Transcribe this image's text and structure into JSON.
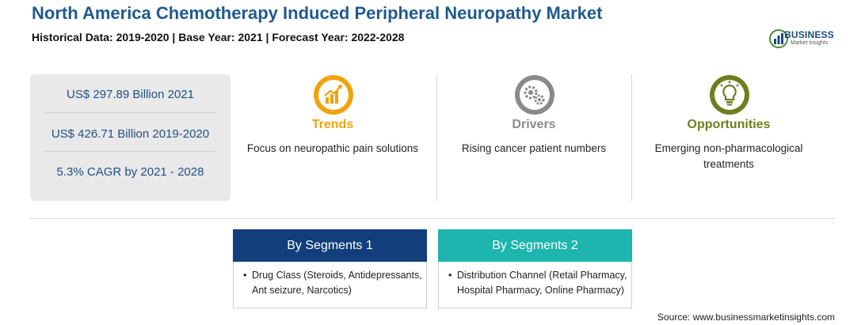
{
  "header": {
    "title": "North America Chemotherapy Induced Peripheral Neuropathy Market",
    "subtitle": "Historical Data: 2019-2020 | Base Year: 2021 | Forecast Year: 2022-2028"
  },
  "logo": {
    "name": "BUSINESS",
    "tagline": "Market Insights",
    "icon": "bar-globe-logo"
  },
  "stats": [
    "US$ 297.89 Billion 2021",
    "US$ 426.71 Billion 2019-2020",
    "5.3% CAGR by 2021 - 2028"
  ],
  "factors": [
    {
      "label": "Trends",
      "description": "Focus on neuropathic pain solutions",
      "icon": "trend-chart-icon",
      "color": "#f0a30a"
    },
    {
      "label": "Drivers",
      "description": "Rising cancer patient numbers",
      "icon": "gears-icon",
      "color": "#8a8a8a"
    },
    {
      "label": "Opportunities",
      "description": "Emerging non-pharmacological treatments",
      "icon": "lightbulb-icon",
      "color": "#6b7f1e"
    }
  ],
  "segments": [
    {
      "title": "By Segments 1",
      "item": "Drug Class (Steroids, Antidepressants, Ant seizure, Narcotics)",
      "color": "#123f7b"
    },
    {
      "title": "By Segments 2",
      "item": "Distribution Channel (Retail Pharmacy, Hospital Pharmacy, Online Pharmacy)",
      "color": "#1db5ad"
    }
  ],
  "source": "Source: www.businessmarketinsights.com"
}
